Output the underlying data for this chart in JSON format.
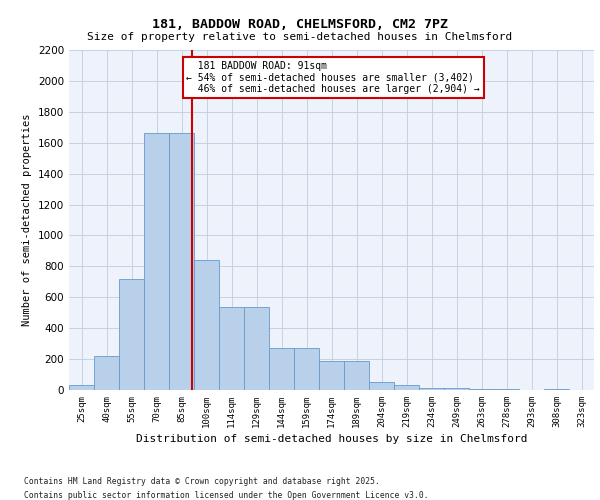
{
  "title1": "181, BADDOW ROAD, CHELMSFORD, CM2 7PZ",
  "title2": "Size of property relative to semi-detached houses in Chelmsford",
  "xlabel": "Distribution of semi-detached houses by size in Chelmsford",
  "ylabel": "Number of semi-detached properties",
  "categories": [
    "25sqm",
    "40sqm",
    "55sqm",
    "70sqm",
    "85sqm",
    "100sqm",
    "114sqm",
    "129sqm",
    "144sqm",
    "159sqm",
    "174sqm",
    "189sqm",
    "204sqm",
    "219sqm",
    "234sqm",
    "249sqm",
    "263sqm",
    "278sqm",
    "293sqm",
    "308sqm",
    "323sqm"
  ],
  "values": [
    30,
    220,
    720,
    1660,
    1660,
    840,
    540,
    540,
    270,
    270,
    185,
    185,
    55,
    30,
    15,
    10,
    5,
    5,
    0,
    5,
    0
  ],
  "bar_color": "#b8d0ea",
  "bar_edge_color": "#6699cc",
  "property_line_label": "181 BADDOW ROAD: 91sqm",
  "pct_smaller": 54,
  "count_smaller": 3402,
  "pct_larger": 46,
  "count_larger": 2904,
  "annotation_box_color": "#cc0000",
  "ylim": [
    0,
    2200
  ],
  "yticks": [
    0,
    200,
    400,
    600,
    800,
    1000,
    1200,
    1400,
    1600,
    1800,
    2000,
    2200
  ],
  "footnote1": "Contains HM Land Registry data © Crown copyright and database right 2025.",
  "footnote2": "Contains public sector information licensed under the Open Government Licence v3.0.",
  "bg_color": "#eef2fb",
  "grid_color": "#c0cce0"
}
